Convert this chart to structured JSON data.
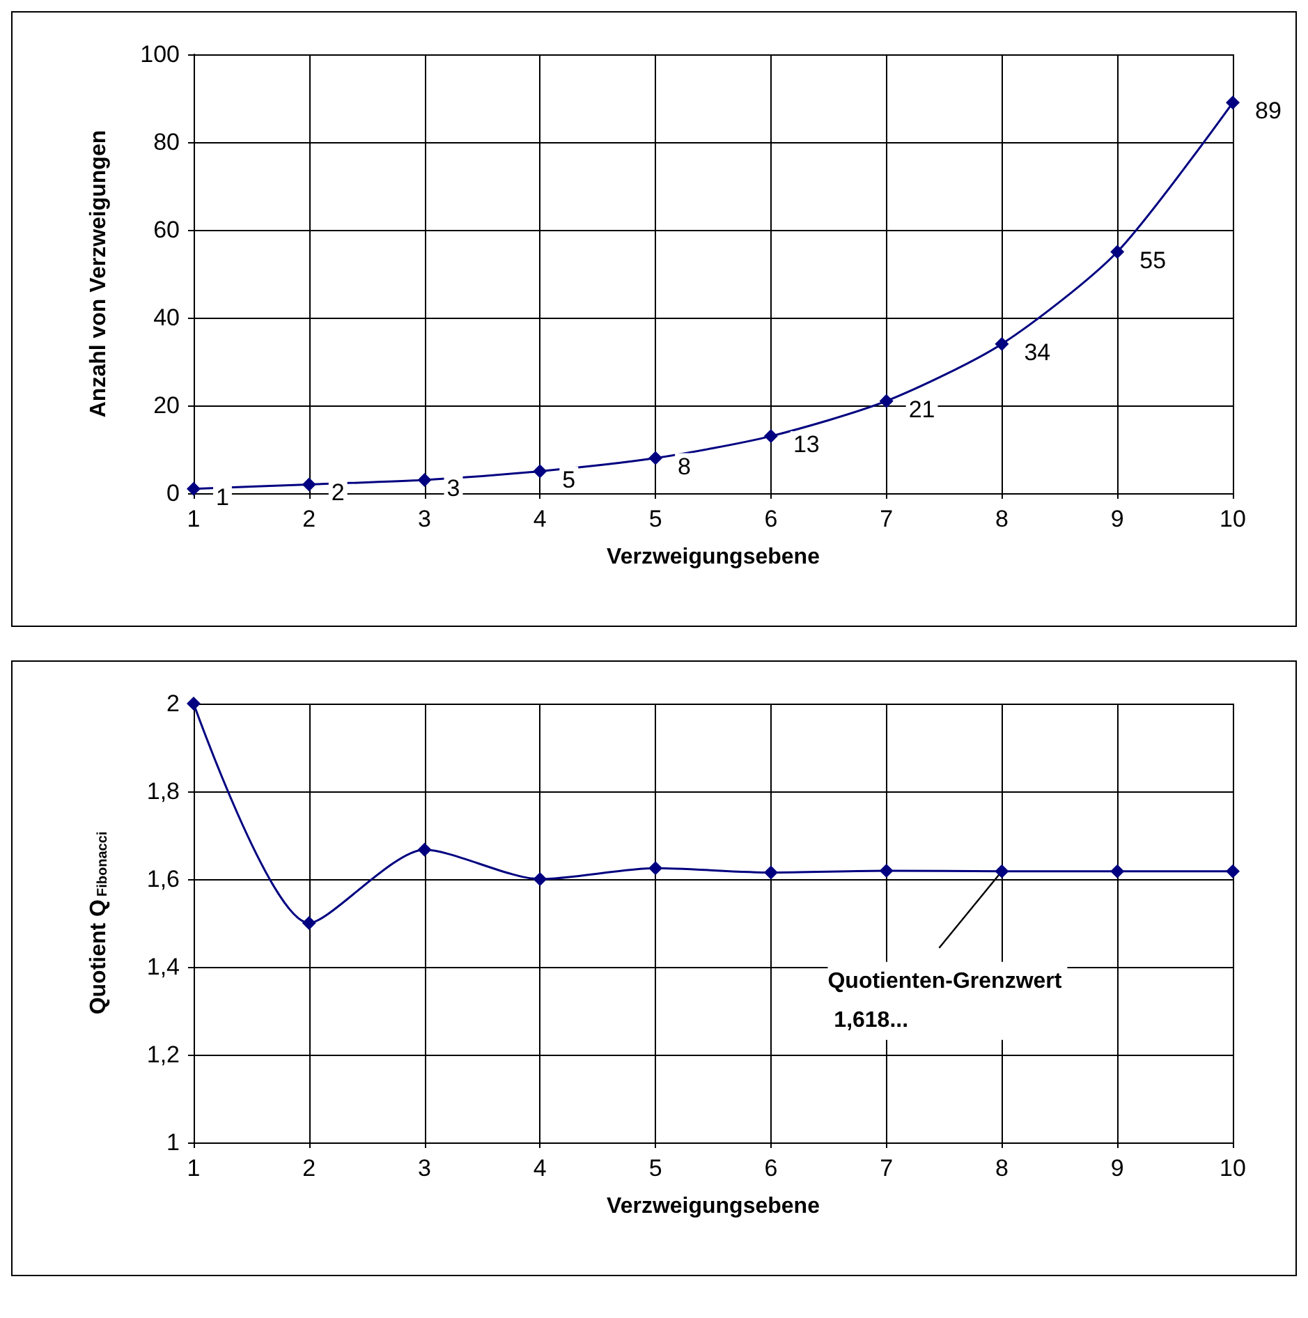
{
  "chart_data": [
    {
      "type": "line",
      "xlabel": "Verzweigungsebene",
      "ylabel": "Anzahl von Verzweigungen",
      "x": [
        1,
        2,
        3,
        4,
        5,
        6,
        7,
        8,
        9,
        10
      ],
      "series": [
        {
          "color": "#000080",
          "values": [
            1,
            2,
            3,
            5,
            8,
            13,
            21,
            34,
            55,
            89
          ]
        }
      ],
      "xlim": [
        1,
        10
      ],
      "xticks": [
        1,
        2,
        3,
        4,
        5,
        6,
        7,
        8,
        9,
        10
      ],
      "ylim": [
        0,
        100
      ],
      "yticks": [
        0,
        20,
        40,
        60,
        80,
        100
      ],
      "grid": true,
      "marker": "diamond",
      "line_style": "solid",
      "data_labels": true
    },
    {
      "type": "line",
      "xlabel": "Verzweigungsebene",
      "ylabel": "Quotient Q$_{Fibonacci}$",
      "x": [
        1,
        2,
        3,
        4,
        5,
        6,
        7,
        8,
        9,
        10
      ],
      "series": [
        {
          "color": "#000080",
          "values": [
            2,
            1.5,
            1.667,
            1.6,
            1.625,
            1.615,
            1.619,
            1.618,
            1.618,
            1.618
          ]
        }
      ],
      "xlim": [
        1,
        10
      ],
      "xticks": [
        1,
        2,
        3,
        4,
        5,
        6,
        7,
        8,
        9,
        10
      ],
      "ylim": [
        1,
        2
      ],
      "yticks": [
        1,
        {
          "value": 1.2,
          "label": "1,2"
        },
        {
          "value": 1.4,
          "label": "1,4"
        },
        {
          "value": 1.6,
          "label": "1,6"
        },
        {
          "value": 1.8,
          "label": "1,8"
        },
        2
      ],
      "grid": true,
      "marker": "diamond",
      "line_style": "solid",
      "annotations": [
        {
          "text": "Quotienten-Grenzwert 1,618...",
          "x": 8,
          "y": 1.618
        }
      ]
    }
  ]
}
